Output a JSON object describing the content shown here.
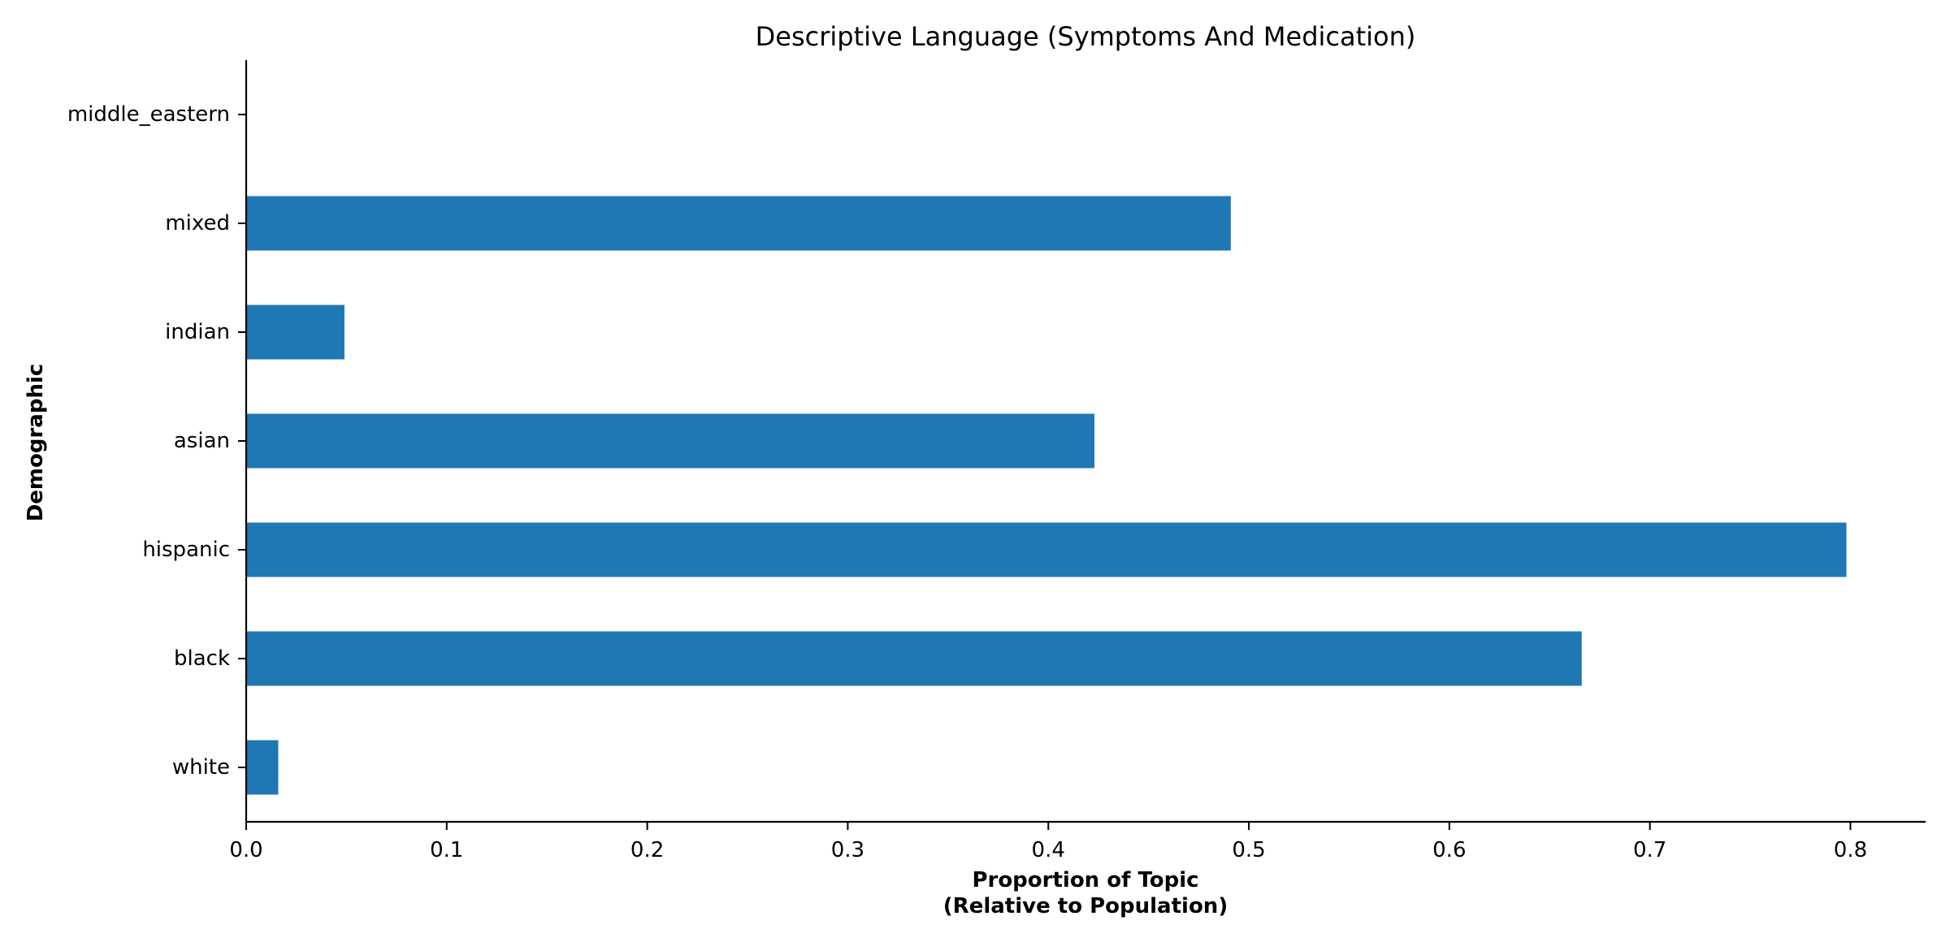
{
  "chart_data": {
    "type": "bar",
    "orientation": "horizontal",
    "title": "Descriptive Language (Symptoms And Medication)",
    "xlabel_lines": [
      "Proportion of Topic",
      "(Relative to Population)"
    ],
    "ylabel": "Demographic",
    "categories": [
      "middle_eastern",
      "mixed",
      "indian",
      "asian",
      "hispanic",
      "black",
      "white"
    ],
    "values": [
      0.0,
      0.491,
      0.049,
      0.423,
      0.798,
      0.666,
      0.016
    ],
    "xlim": [
      0,
      0.8375
    ],
    "xticks": [
      0.0,
      0.1,
      0.2,
      0.3,
      0.4,
      0.5,
      0.6,
      0.7,
      0.8
    ],
    "xtick_labels": [
      "0.0",
      "0.1",
      "0.2",
      "0.3",
      "0.4",
      "0.5",
      "0.6",
      "0.7",
      "0.8"
    ],
    "bar_color": "#1f77b4",
    "grid": false,
    "legend": "none"
  }
}
